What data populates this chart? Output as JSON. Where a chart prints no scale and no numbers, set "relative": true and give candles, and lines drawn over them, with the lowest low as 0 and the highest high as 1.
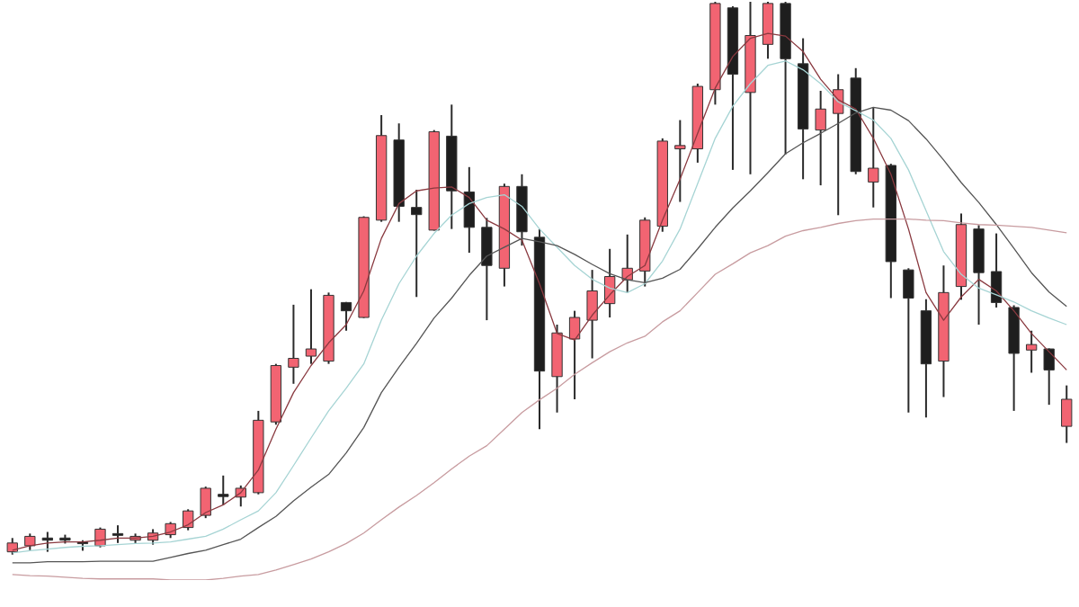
{
  "chart_data": {
    "type": "candlestick",
    "relative": true,
    "categories": [
      null,
      null,
      null,
      null,
      null,
      null,
      null,
      null,
      null,
      null,
      null,
      null,
      null,
      null,
      null,
      null,
      null,
      null,
      null,
      null,
      null,
      null,
      null,
      null,
      null,
      null,
      null,
      null,
      null,
      null,
      null,
      null,
      null,
      null,
      null,
      null,
      null,
      null,
      null,
      null,
      null,
      null,
      null,
      null,
      null,
      null,
      null,
      null,
      null,
      null,
      null,
      null,
      null,
      null,
      null,
      null,
      null,
      null,
      null,
      null,
      null
    ],
    "ohlc": [
      [
        0.005,
        0.03,
        0,
        0.021
      ],
      [
        0.016,
        0.038,
        0.008,
        0.033
      ],
      [
        0.03,
        0.041,
        0.005,
        0.026
      ],
      [
        0.03,
        0.036,
        0.02,
        0.026
      ],
      [
        0.023,
        0.026,
        0.007,
        0.02
      ],
      [
        0.016,
        0.049,
        0.013,
        0.046
      ],
      [
        0.038,
        0.053,
        0.021,
        0.035
      ],
      [
        0.026,
        0.038,
        0.02,
        0.033
      ],
      [
        0.026,
        0.046,
        0.018,
        0.039
      ],
      [
        0.036,
        0.059,
        0.03,
        0.056
      ],
      [
        0.049,
        0.082,
        0.044,
        0.079
      ],
      [
        0.071,
        0.123,
        0.066,
        0.12
      ],
      [
        0.109,
        0.143,
        0.09,
        0.105
      ],
      [
        0.104,
        0.125,
        0.087,
        0.12
      ],
      [
        0.112,
        0.26,
        0.109,
        0.243
      ],
      [
        0.24,
        0.345,
        0.235,
        0.342
      ],
      [
        0.339,
        0.452,
        0.309,
        0.355
      ],
      [
        0.359,
        0.48,
        0.345,
        0.372
      ],
      [
        0.35,
        0.474,
        0.345,
        0.469
      ],
      [
        0.456,
        0.457,
        0.405,
        0.441
      ],
      [
        0.429,
        0.612,
        0.428,
        0.61
      ],
      [
        0.605,
        0.795,
        0.602,
        0.758
      ],
      [
        0.75,
        0.78,
        0.602,
        0.63
      ],
      [
        0.628,
        0.66,
        0.466,
        0.615
      ],
      [
        0.587,
        0.768,
        0.586,
        0.765
      ],
      [
        0.757,
        0.814,
        0.589,
        0.658
      ],
      [
        0.656,
        0.701,
        0.546,
        0.592
      ],
      [
        0.592,
        0.609,
        0.424,
        0.523
      ],
      [
        0.518,
        0.671,
        0.485,
        0.666
      ],
      [
        0.666,
        0.688,
        0.559,
        0.584
      ],
      [
        0.574,
        0.589,
        0.227,
        0.332
      ],
      [
        0.322,
        0.416,
        0.257,
        0.401
      ],
      [
        0.39,
        0.441,
        0.281,
        0.429
      ],
      [
        0.424,
        0.515,
        0.355,
        0.477
      ],
      [
        0.454,
        0.553,
        0.429,
        0.503
      ],
      [
        0.497,
        0.579,
        0.474,
        0.518
      ],
      [
        0.513,
        0.61,
        0.485,
        0.605
      ],
      [
        0.594,
        0.753,
        0.584,
        0.748
      ],
      [
        0.734,
        0.786,
        0.638,
        0.74
      ],
      [
        0.734,
        0.852,
        0.709,
        0.847
      ],
      [
        0.841,
        1,
        0.814,
        0.997
      ],
      [
        0.989,
        0.992,
        0.696,
        0.869
      ],
      [
        0.836,
        1,
        0.688,
        0.939
      ],
      [
        0.923,
        1,
        0.897,
        0.997
      ],
      [
        0.997,
        1,
        0.724,
        0.897
      ],
      [
        0.888,
        0.934,
        0.679,
        0.77
      ],
      [
        0.768,
        0.839,
        0.668,
        0.806
      ],
      [
        0.798,
        0.869,
        0.614,
        0.841
      ],
      [
        0.862,
        0.88,
        0.688,
        0.693
      ],
      [
        0.674,
        0.808,
        0.628,
        0.699
      ],
      [
        0.704,
        0.707,
        0.464,
        0.53
      ],
      [
        0.515,
        0.518,
        0.257,
        0.464
      ],
      [
        0.441,
        0.462,
        0.248,
        0.345
      ],
      [
        0.35,
        0.523,
        0.285,
        0.474
      ],
      [
        0.485,
        0.617,
        0.461,
        0.597
      ],
      [
        0.589,
        0.596,
        0.416,
        0.51
      ],
      [
        0.512,
        0.581,
        0.447,
        0.456
      ],
      [
        0.447,
        0.451,
        0.26,
        0.364
      ],
      [
        0.37,
        0.405,
        0.329,
        0.38
      ],
      [
        0.372,
        0.373,
        0.271,
        0.334
      ],
      [
        0.232,
        0.306,
        0.202,
        0.281
      ]
    ],
    "colors": [
      "#f26472",
      "#f26472",
      "#1e1e1e",
      "#1e1e1e",
      "#1e1e1e",
      "#f26472",
      "#1e1e1e",
      "#f26472",
      "#f26472",
      "#f26472",
      "#f26472",
      "#f26472",
      "#1e1e1e",
      "#f26472",
      "#f26472",
      "#f26472",
      "#f26472",
      "#f26472",
      "#f26472",
      "#1e1e1e",
      "#f26472",
      "#f26472",
      "#1e1e1e",
      "#1e1e1e",
      "#f26472",
      "#1e1e1e",
      "#1e1e1e",
      "#1e1e1e",
      "#f26472",
      "#1e1e1e",
      "#1e1e1e",
      "#f26472",
      "#f26472",
      "#f26472",
      "#f26472",
      "#f26472",
      "#f26472",
      "#f26472",
      "#f26472",
      "#f26472",
      "#f26472",
      "#1e1e1e",
      "#f26472",
      "#f26472",
      "#1e1e1e",
      "#1e1e1e",
      "#f26472",
      "#f26472",
      "#1e1e1e",
      "#f26472",
      "#1e1e1e",
      "#1e1e1e",
      "#1e1e1e",
      "#f26472",
      "#f26472",
      "#1e1e1e",
      "#1e1e1e",
      "#1e1e1e",
      "#f26472",
      "#1e1e1e",
      "#f26472"
    ],
    "series": [
      {
        "type": "line",
        "color": "#c89ca0",
        "values": [
          -0.036,
          -0.038,
          -0.039,
          -0.041,
          -0.043,
          -0.044,
          -0.044,
          -0.044,
          -0.044,
          -0.046,
          -0.046,
          -0.046,
          -0.043,
          -0.039,
          -0.036,
          -0.028,
          -0.018,
          -0.008,
          0.005,
          0.02,
          0.039,
          0.063,
          0.086,
          0.107,
          0.13,
          0.155,
          0.178,
          0.197,
          0.227,
          0.257,
          0.28,
          0.301,
          0.326,
          0.347,
          0.367,
          0.383,
          0.395,
          0.421,
          0.441,
          0.474,
          0.507,
          0.526,
          0.546,
          0.559,
          0.576,
          0.586,
          0.592,
          0.599,
          0.604,
          0.607,
          0.607,
          0.607,
          0.605,
          0.604,
          0.6,
          0.597,
          0.596,
          0.594,
          0.592,
          0.587,
          0.582
        ]
      },
      {
        "type": "line",
        "color": "#555555",
        "values": [
          -0.015,
          -0.015,
          -0.013,
          -0.013,
          -0.013,
          -0.012,
          -0.012,
          -0.012,
          -0.012,
          -0.005,
          0.002,
          0.008,
          0.018,
          0.028,
          0.049,
          0.069,
          0.097,
          0.122,
          0.145,
          0.184,
          0.23,
          0.293,
          0.339,
          0.382,
          0.428,
          0.464,
          0.505,
          0.54,
          0.556,
          0.572,
          0.566,
          0.559,
          0.543,
          0.525,
          0.508,
          0.497,
          0.492,
          0.5,
          0.516,
          0.553,
          0.592,
          0.627,
          0.658,
          0.691,
          0.725,
          0.745,
          0.762,
          0.78,
          0.799,
          0.809,
          0.804,
          0.785,
          0.752,
          0.714,
          0.673,
          0.637,
          0.597,
          0.554,
          0.51,
          0.475,
          0.449
        ]
      },
      {
        "type": "line",
        "color": "#a6d4d4",
        "values": [
          0.003,
          0.007,
          0.01,
          0.013,
          0.015,
          0.016,
          0.018,
          0.02,
          0.021,
          0.023,
          0.028,
          0.033,
          0.046,
          0.063,
          0.079,
          0.112,
          0.161,
          0.211,
          0.26,
          0.301,
          0.345,
          0.424,
          0.49,
          0.54,
          0.581,
          0.614,
          0.635,
          0.646,
          0.651,
          0.63,
          0.589,
          0.556,
          0.523,
          0.498,
          0.482,
          0.474,
          0.49,
          0.531,
          0.589,
          0.671,
          0.753,
          0.811,
          0.852,
          0.885,
          0.893,
          0.877,
          0.852,
          0.819,
          0.803,
          0.786,
          0.753,
          0.696,
          0.622,
          0.548,
          0.507,
          0.482,
          0.47,
          0.457,
          0.441,
          0.428,
          0.416
        ]
      },
      {
        "type": "line",
        "color": "#8a3a40",
        "values": [
          0.008,
          0.016,
          0.021,
          0.023,
          0.023,
          0.026,
          0.03,
          0.03,
          0.033,
          0.041,
          0.054,
          0.076,
          0.09,
          0.112,
          0.153,
          0.227,
          0.293,
          0.342,
          0.383,
          0.416,
          0.477,
          0.572,
          0.635,
          0.658,
          0.663,
          0.665,
          0.646,
          0.605,
          0.589,
          0.569,
          0.49,
          0.4,
          0.388,
          0.433,
          0.47,
          0.503,
          0.523,
          0.605,
          0.679,
          0.762,
          0.844,
          0.901,
          0.934,
          0.943,
          0.938,
          0.91,
          0.86,
          0.823,
          0.806,
          0.753,
          0.688,
          0.589,
          0.474,
          0.424,
          0.466,
          0.498,
          0.477,
          0.441,
          0.4,
          0.367,
          0.334
        ]
      }
    ]
  }
}
